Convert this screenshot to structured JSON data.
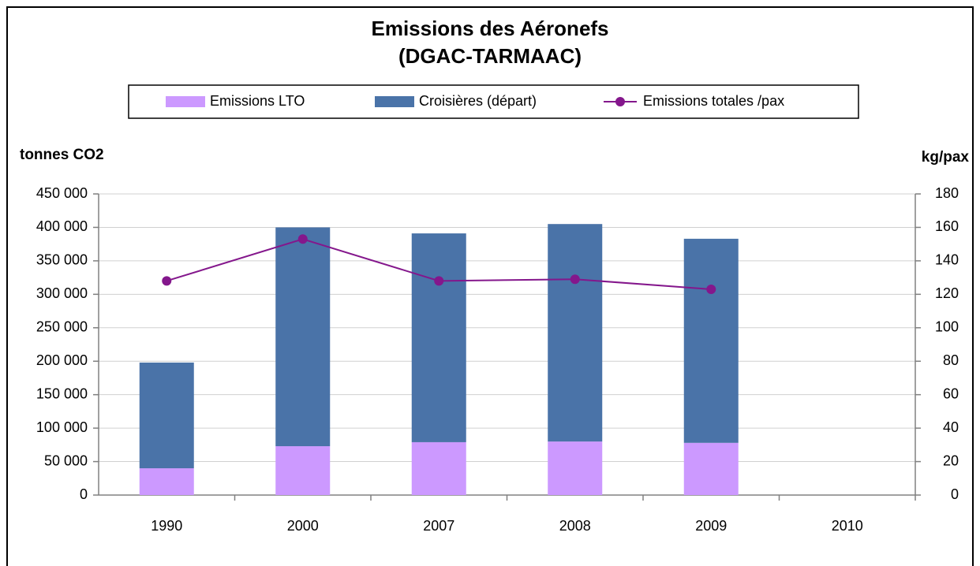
{
  "chart_data": {
    "type": "bar-line",
    "title": "Emissions des Aéronefs",
    "subtitle": "(DGAC-TARMAAC)",
    "y_label": "tonnes CO2",
    "y2_label": "kg/pax",
    "categories": [
      "1990",
      "2000",
      "2007",
      "2008",
      "2009",
      "2010"
    ],
    "series": [
      {
        "name": "Emissions LTO",
        "type": "bar",
        "color": "#cc99ff",
        "values": [
          40000,
          73000,
          79000,
          80000,
          78000,
          null
        ]
      },
      {
        "name": "Croisières (départ)",
        "type": "bar",
        "color": "#4a73a8",
        "values": [
          158000,
          327000,
          312000,
          325000,
          305000,
          null
        ]
      },
      {
        "name": "Emissions totales /pax",
        "type": "line",
        "axis": "y2",
        "color": "#84178c",
        "values": [
          128,
          153,
          128,
          129,
          123,
          null
        ]
      }
    ],
    "stacked": true,
    "ylim": [
      0,
      450000
    ],
    "yticks": [
      0,
      {
        "value": 50000,
        "label": "50 000"
      },
      {
        "value": 100000,
        "label": "100 000"
      },
      {
        "value": 150000,
        "label": "150 000"
      },
      {
        "value": 200000,
        "label": "200 000"
      },
      {
        "value": 250000,
        "label": "250 000"
      },
      {
        "value": 300000,
        "label": "300 000"
      },
      {
        "value": 350000,
        "label": "350 000"
      },
      {
        "value": 400000,
        "label": "400 000"
      },
      {
        "value": 450000,
        "label": "450 000"
      }
    ],
    "y2lim": [
      0,
      180
    ],
    "y2ticks": [
      0,
      20,
      40,
      60,
      80,
      100,
      120,
      140,
      160,
      180
    ],
    "grid": true,
    "legend": "top"
  }
}
